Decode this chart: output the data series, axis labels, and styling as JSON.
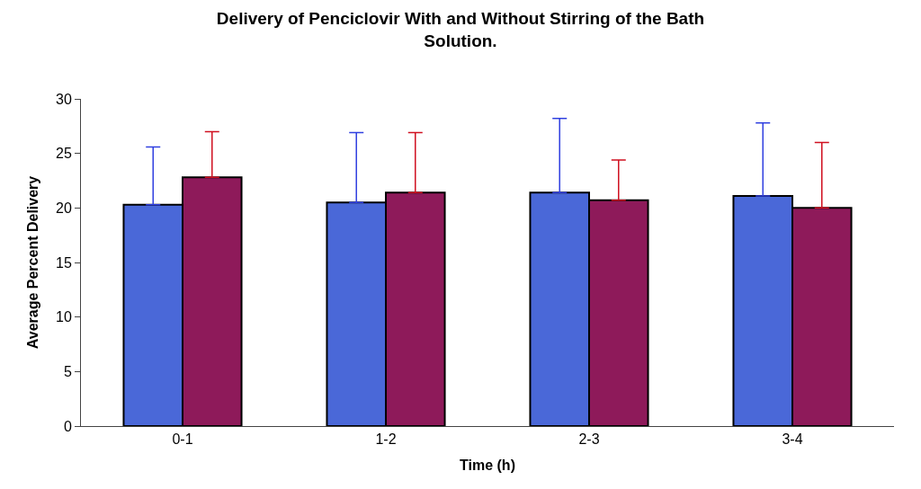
{
  "chart_data": {
    "type": "bar",
    "title": "Delivery of Penciclovir With and Without Stirring of the Bath Solution.",
    "xlabel": "Time (h)",
    "ylabel": "Average Percent Delivery",
    "categories": [
      "0-1",
      "1-2",
      "2-3",
      "3-4"
    ],
    "series": [
      {
        "color": "#4a68d8",
        "values": [
          20.3,
          20.5,
          21.4,
          21.1
        ],
        "errors": [
          [
            20.3,
            25.6
          ],
          [
            20.5,
            26.9
          ],
          [
            21.4,
            28.2
          ],
          [
            21.1,
            27.8
          ]
        ]
      },
      {
        "color": "#8e1a5a",
        "values": [
          22.8,
          21.4,
          20.7,
          20.0
        ],
        "errors": [
          [
            22.8,
            27.0
          ],
          [
            21.4,
            26.9
          ],
          [
            20.7,
            24.4
          ],
          [
            20.0,
            26.0
          ]
        ]
      }
    ],
    "ylim": [
      0,
      30
    ],
    "yticks": [
      0,
      5,
      10,
      15,
      20,
      25,
      30
    ]
  }
}
